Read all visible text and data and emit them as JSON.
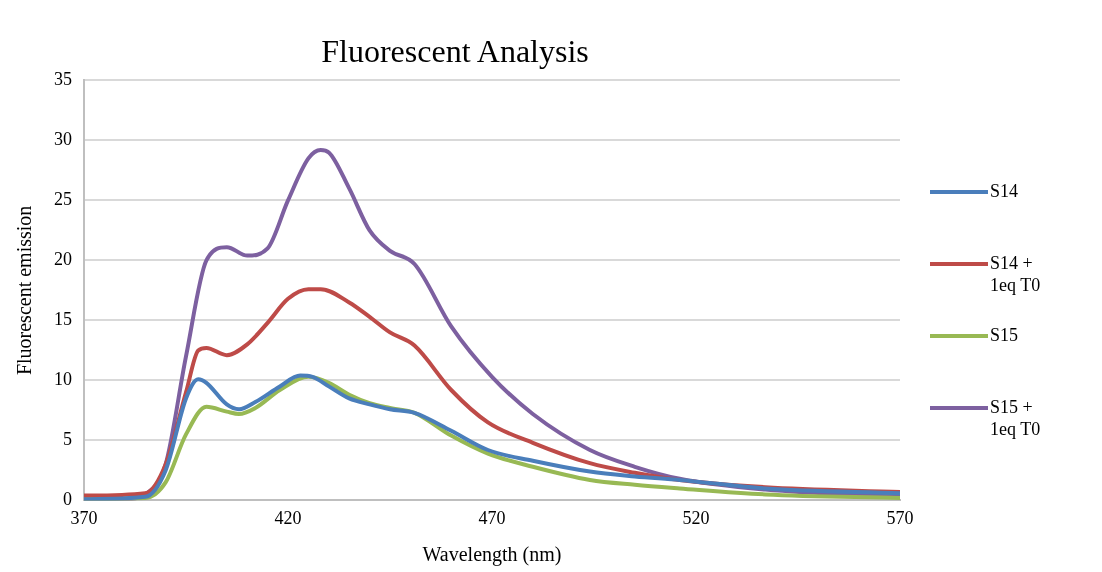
{
  "chart_data": {
    "type": "line",
    "title": "Fluorescent Analysis",
    "xlabel": "Wavelength (nm)",
    "ylabel": "Fluorescent emission",
    "xlim": [
      370,
      570
    ],
    "xticks": [
      370,
      420,
      470,
      520,
      570
    ],
    "ylim": [
      0,
      35
    ],
    "yticks": [
      0,
      5,
      10,
      15,
      20,
      25,
      30,
      35
    ],
    "grid": "y",
    "legend": "right",
    "marker": "none",
    "line_style": "solid",
    "series": [
      {
        "name": "S14",
        "color": "#4a7ebb",
        "x": [
          370,
          385,
          390,
          395,
          398,
          400,
          405,
          408,
          412,
          418,
          423,
          426,
          430,
          435,
          440,
          445,
          451,
          460,
          469,
          480,
          494,
          505,
          516,
          537,
          570
        ],
        "values": [
          0.1,
          0.3,
          2.5,
          8.5,
          10.1,
          9.8,
          8,
          7.6,
          8.2,
          9.5,
          10.4,
          10.3,
          9.5,
          8.5,
          8,
          7.6,
          7.3,
          5.8,
          4.2,
          3.3,
          2.4,
          2,
          1.7,
          1,
          0.6
        ]
      },
      {
        "name": "S14 + 1eq T0",
        "color": "#be4b48",
        "x": [
          370,
          385,
          390,
          395,
          398,
          400,
          405,
          410,
          415,
          420,
          425,
          428,
          435,
          440,
          445,
          451,
          460,
          469,
          480,
          494,
          505,
          516,
          537,
          570
        ],
        "values": [
          0.4,
          0.6,
          3,
          9,
          12.5,
          12.7,
          12.1,
          13,
          14.8,
          16.8,
          17.6,
          17.6,
          16.5,
          15.3,
          14,
          12.9,
          9.2,
          6.5,
          4.8,
          3.1,
          2.3,
          1.7,
          1.1,
          0.7
        ]
      },
      {
        "name": "S15",
        "color": "#98b954",
        "x": [
          370,
          385,
          390,
          395,
          400,
          405,
          408,
          412,
          418,
          425,
          430,
          435,
          440,
          445,
          451,
          460,
          469,
          480,
          494,
          505,
          516,
          537,
          570
        ],
        "values": [
          0.1,
          0.2,
          1.5,
          5.5,
          7.8,
          7.4,
          7.2,
          7.7,
          9.2,
          10.3,
          9.8,
          8.8,
          8.1,
          7.7,
          7.3,
          5.4,
          3.9,
          2.8,
          1.7,
          1.3,
          1,
          0.5,
          0.2
        ]
      },
      {
        "name": "S15 + 1eq T0",
        "color": "#7d60a0",
        "x": [
          370,
          380,
          385,
          390,
          395,
          400,
          405,
          410,
          415,
          420,
          425,
          428,
          430,
          435,
          440,
          445,
          451,
          460,
          470,
          480,
          494,
          505,
          516,
          537,
          570
        ],
        "values": [
          0.1,
          0.1,
          0.5,
          3,
          12,
          20,
          21.1,
          20.4,
          21,
          25,
          28.5,
          29.2,
          29,
          26,
          22.5,
          20.8,
          19.7,
          14.5,
          10.3,
          7.2,
          4.2,
          2.8,
          1.8,
          0.9,
          0.3
        ]
      }
    ]
  }
}
